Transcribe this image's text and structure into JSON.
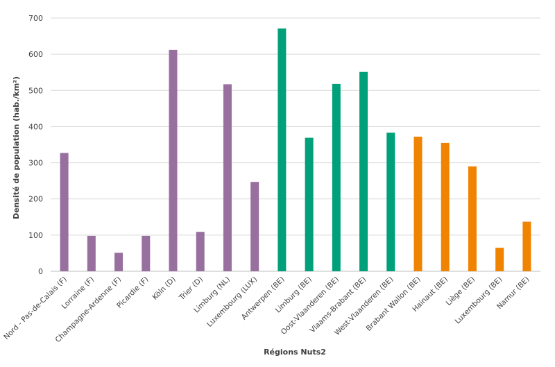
{
  "chart_data": {
    "type": "bar",
    "title": "",
    "xlabel": "Régions Nuts2",
    "ylabel": "Densité de population (hab./km²)",
    "ylim": [
      0,
      700
    ],
    "yticks": [
      "0",
      "100",
      "200",
      "300",
      "400",
      "500",
      "600",
      "700"
    ],
    "grid": true,
    "legend": "none",
    "categories": [
      "Nord - Pas-de-Calais (F)",
      "Lorraine (F)",
      "Champagne-Ardenne (F)",
      "Picardie (F)",
      "Köln (D)",
      "Trier (D)",
      "Limburg (NL)",
      "Luxembourg (LUX)",
      "Antwerpen (BE)",
      "Limburg (BE)",
      "Oost-Vlaanderen (BE)",
      "Vlaams-Brabant (BE)",
      "West-Vlaanderen (BE)",
      "Brabant Wallon (BE)",
      "Hainaut (BE)",
      "Liège (BE)",
      "Luxembourg (BE)",
      "Namur (BE)"
    ],
    "values": [
      327,
      98,
      51,
      98,
      612,
      109,
      517,
      247,
      671,
      369,
      518,
      551,
      383,
      372,
      355,
      290,
      65,
      137
    ],
    "bar_colors": [
      "#98709f",
      "#98709f",
      "#98709f",
      "#98709f",
      "#98709f",
      "#98709f",
      "#98709f",
      "#98709f",
      "#00a07a",
      "#00a07a",
      "#00a07a",
      "#00a07a",
      "#00a07a",
      "#f08300",
      "#f08300",
      "#f08300",
      "#f08300",
      "#f08300"
    ]
  }
}
